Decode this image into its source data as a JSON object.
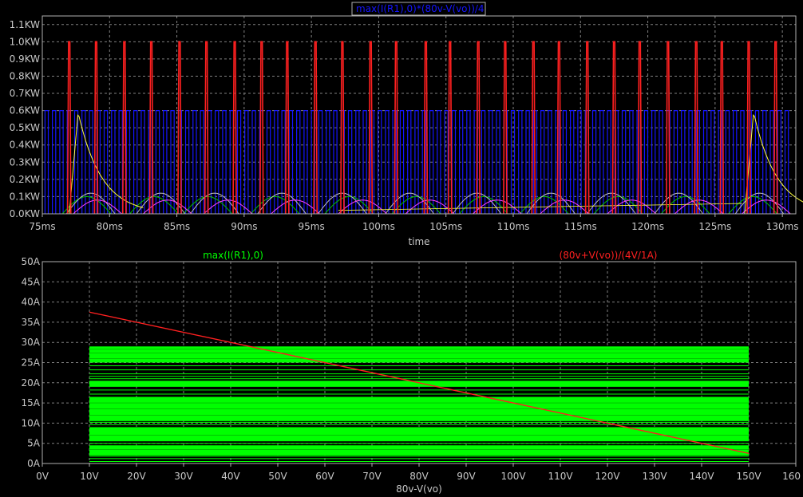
{
  "chart_data": [
    {
      "type": "line",
      "title": "max(I(R1),0)*(80v-V(vo))/4",
      "title_color": "#1414ff",
      "xlabel": "time",
      "ylabel": "",
      "x_ticks": [
        "75ms",
        "80ms",
        "85ms",
        "90ms",
        "95ms",
        "100ms",
        "105ms",
        "110ms",
        "115ms",
        "120ms",
        "125ms",
        "130ms"
      ],
      "x_tick_values_ms": [
        75,
        80,
        85,
        90,
        95,
        100,
        105,
        110,
        115,
        120,
        125,
        130
      ],
      "y_ticks": [
        "0.0KW",
        "0.1KW",
        "0.2KW",
        "0.3KW",
        "0.4KW",
        "0.5KW",
        "0.6KW",
        "0.7KW",
        "0.8KW",
        "0.9KW",
        "1.0KW",
        "1.1KW"
      ],
      "y_tick_values_kw": [
        0,
        0.1,
        0.2,
        0.3,
        0.4,
        0.5,
        0.6,
        0.7,
        0.8,
        0.9,
        1.0,
        1.1
      ],
      "xlim": [
        75,
        131
      ],
      "ylim": [
        0,
        1.15
      ],
      "grid": true,
      "series": [
        {
          "color": "#1414ff",
          "kind": "dense_pulses",
          "x_start": 75.2,
          "x_end": 130.5,
          "step": 0.55,
          "peak": 0.6
        },
        {
          "color": "#ff2020",
          "kind": "spikes",
          "x": [
            77.0,
            79.0,
            81.1,
            83.1,
            85.2,
            87.2,
            89.3,
            91.3,
            93.2,
            95.3,
            97.3,
            99.4,
            101.3,
            103.5,
            105.3,
            107.4,
            109.4,
            111.5,
            113.4,
            115.5,
            117.5,
            119.4,
            121.5,
            123.6,
            125.5,
            127.5,
            129.5
          ],
          "peak": 1.0
        },
        {
          "color": "#ffff40",
          "kind": "bumps",
          "x_start": [
            77.0,
            127.2
          ],
          "peak": 0.59,
          "width": 5.5
        },
        {
          "color": "#00c000",
          "kind": "small_bumps",
          "x": [
            76.5,
            81.5,
            85.5,
            90.5,
            96.0,
            101.0,
            106.0,
            110.5,
            116.0,
            121.0,
            126.0
          ],
          "peak": 0.1
        },
        {
          "color": "#c0c0c0",
          "kind": "small_bumps",
          "x": [
            76.8,
            82.0,
            86.0,
            91.0,
            95.5,
            100.5,
            105.5,
            111.0,
            115.5,
            120.5,
            126.5
          ],
          "peak": 0.12
        },
        {
          "color": "#ff40ff",
          "kind": "small_bumps",
          "x": [
            77.3,
            82.5,
            87.0,
            92.0,
            97.0,
            102.0,
            107.0,
            112.0,
            117.0,
            122.0,
            127.0
          ],
          "peak": 0.08
        }
      ]
    },
    {
      "type": "line",
      "legend": [
        {
          "name": "max(I(R1),0)",
          "color": "#00ff00"
        },
        {
          "name": "(80v+V(vo))/(4V/1A)",
          "color": "#ff2020"
        }
      ],
      "xlabel": "80v-V(vo)",
      "x_ticks": [
        "0V",
        "10V",
        "20V",
        "30V",
        "40V",
        "50V",
        "60V",
        "70V",
        "80V",
        "90V",
        "100V",
        "110V",
        "120V",
        "130V",
        "140V",
        "150V",
        "160"
      ],
      "x_tick_values_v": [
        0,
        10,
        20,
        30,
        40,
        50,
        60,
        70,
        80,
        90,
        100,
        110,
        120,
        130,
        140,
        150,
        160
      ],
      "y_ticks": [
        "0A",
        "5A",
        "10A",
        "15A",
        "20A",
        "25A",
        "30A",
        "35A",
        "40A",
        "45A",
        "50A"
      ],
      "y_tick_values_a": [
        0,
        5,
        10,
        15,
        20,
        25,
        30,
        35,
        40,
        45,
        50
      ],
      "xlim": [
        0,
        160
      ],
      "ylim": [
        0,
        50
      ],
      "grid": true,
      "green_band": {
        "x": [
          10,
          150
        ],
        "bands": [
          [
            25,
            29
          ],
          [
            19,
            20.5
          ],
          [
            10.5,
            16.5
          ],
          [
            5.5,
            9
          ],
          [
            2,
            4.5
          ]
        ]
      },
      "green_lines_y": [
        0.5,
        1.2,
        1.8,
        5,
        9.6,
        10.2,
        17.2,
        18.2,
        21,
        21.6,
        22.2,
        23.2,
        24.2,
        26.6
      ],
      "red_line": {
        "x": [
          10,
          150
        ],
        "y": [
          37.5,
          2.5
        ]
      }
    }
  ]
}
